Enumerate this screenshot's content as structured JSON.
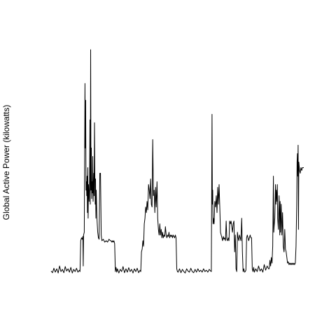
{
  "chart_data": {
    "type": "line",
    "title": "",
    "xlabel": "",
    "ylabel": "Global Active Power (kilowatts)",
    "axes_visible": false,
    "grid": false,
    "ylim": [
      0,
      8
    ],
    "xlim": [
      0,
      360
    ],
    "line_color": "#000000",
    "series": [
      {
        "points": [
          [
            0,
            0.12
          ],
          [
            2,
            0.06
          ],
          [
            4,
            0.22
          ],
          [
            6,
            0.08
          ],
          [
            8,
            0.2
          ],
          [
            10,
            0.05
          ],
          [
            12,
            0.3
          ],
          [
            14,
            0.1
          ],
          [
            16,
            0.18
          ],
          [
            18,
            0.06
          ],
          [
            20,
            0.28
          ],
          [
            22,
            0.12
          ],
          [
            24,
            0.2
          ],
          [
            26,
            0.08
          ],
          [
            28,
            0.25
          ],
          [
            30,
            0.05
          ],
          [
            32,
            0.18
          ],
          [
            34,
            0.1
          ],
          [
            36,
            0.22
          ],
          [
            38,
            0.08
          ],
          [
            40,
            0.15
          ],
          [
            41,
            0.1
          ],
          [
            42,
            1.2
          ],
          [
            43,
            1.3
          ],
          [
            44,
            1.25
          ],
          [
            45,
            1.35
          ],
          [
            45.5,
            0.3
          ],
          [
            46,
            1.4
          ],
          [
            47,
            1.5
          ],
          [
            48,
            6.8
          ],
          [
            48.5,
            4.5
          ],
          [
            49,
            6.2
          ],
          [
            49.5,
            3.0
          ],
          [
            50,
            3.3
          ],
          [
            50.5,
            2.8
          ],
          [
            51,
            3.5
          ],
          [
            51.5,
            2.2
          ],
          [
            52,
            3.8
          ],
          [
            52.5,
            2.0
          ],
          [
            53,
            3.2
          ],
          [
            54,
            2.6
          ],
          [
            54.5,
            3.4
          ],
          [
            55,
            5.5
          ],
          [
            55.5,
            2.5
          ],
          [
            56,
            8.0
          ],
          [
            56.5,
            3.0
          ],
          [
            57,
            4.5
          ],
          [
            57.5,
            2.7
          ],
          [
            58,
            3.3
          ],
          [
            58.5,
            2.9
          ],
          [
            59,
            4.2
          ],
          [
            59.5,
            2.6
          ],
          [
            60,
            3.0
          ],
          [
            60.5,
            3.6
          ],
          [
            61,
            2.8
          ],
          [
            61.5,
            5.4
          ],
          [
            62,
            3.6
          ],
          [
            62.5,
            2.5
          ],
          [
            63,
            3.4
          ],
          [
            63.5,
            2.0
          ],
          [
            64,
            3.0
          ],
          [
            65,
            2.0
          ],
          [
            66,
            1.5
          ],
          [
            67,
            1.3
          ],
          [
            68,
            1.25
          ],
          [
            69,
            3.6
          ],
          [
            70,
            3.6
          ],
          [
            71,
            1.4
          ],
          [
            72,
            1.2
          ],
          [
            74,
            1.25
          ],
          [
            76,
            1.15
          ],
          [
            78,
            1.2
          ],
          [
            80,
            1.15
          ],
          [
            82,
            1.25
          ],
          [
            84,
            1.2
          ],
          [
            85,
            1.2
          ],
          [
            86,
            1.15
          ],
          [
            87,
            1.2
          ],
          [
            88,
            1.15
          ],
          [
            89,
            1.2
          ],
          [
            90,
            1.1
          ],
          [
            91,
            0.1
          ],
          [
            92,
            0.25
          ],
          [
            93,
            0.08
          ],
          [
            94,
            0.2
          ],
          [
            96,
            0.05
          ],
          [
            98,
            0.18
          ],
          [
            100,
            0.1
          ],
          [
            102,
            0.28
          ],
          [
            104,
            0.06
          ],
          [
            106,
            0.2
          ],
          [
            108,
            0.08
          ],
          [
            110,
            0.24
          ],
          [
            112,
            0.1
          ],
          [
            114,
            0.18
          ],
          [
            116,
            0.05
          ],
          [
            118,
            0.2
          ],
          [
            120,
            0.1
          ],
          [
            122,
            0.22
          ],
          [
            124,
            0.06
          ],
          [
            126,
            0.15
          ],
          [
            127,
            0.1
          ],
          [
            128,
            0.8
          ],
          [
            129,
            0.9
          ],
          [
            130,
            1.2
          ],
          [
            131,
            1.0
          ],
          [
            132,
            1.8
          ],
          [
            133,
            2.0
          ],
          [
            134,
            2.4
          ],
          [
            135,
            2.2
          ],
          [
            136,
            2.6
          ],
          [
            137,
            2.3
          ],
          [
            138,
            3.2
          ],
          [
            139,
            3.0
          ],
          [
            140,
            2.7
          ],
          [
            141,
            3.4
          ],
          [
            142,
            2.5
          ],
          [
            143,
            2.4
          ],
          [
            144,
            4.8
          ],
          [
            145,
            2.8
          ],
          [
            146,
            3.0
          ],
          [
            147,
            2.2
          ],
          [
            148,
            3.1
          ],
          [
            149,
            2.4
          ],
          [
            150,
            3.3
          ],
          [
            151,
            2.0
          ],
          [
            152,
            1.6
          ],
          [
            153,
            1.4
          ],
          [
            154,
            1.8
          ],
          [
            155,
            1.4
          ],
          [
            156,
            1.6
          ],
          [
            157,
            1.3
          ],
          [
            158,
            1.5
          ],
          [
            159,
            1.3
          ],
          [
            160,
            1.4
          ],
          [
            161,
            1.35
          ],
          [
            162,
            1.7
          ],
          [
            163,
            1.4
          ],
          [
            164,
            1.3
          ],
          [
            165,
            1.4
          ],
          [
            166,
            1.35
          ],
          [
            167,
            1.5
          ],
          [
            168,
            1.3
          ],
          [
            169,
            1.4
          ],
          [
            170,
            1.35
          ],
          [
            171,
            1.4
          ],
          [
            172,
            1.3
          ],
          [
            173,
            1.4
          ],
          [
            174,
            1.35
          ],
          [
            175,
            1.3
          ],
          [
            176,
            1.4
          ],
          [
            177,
            1.3
          ],
          [
            178,
            0.2
          ],
          [
            179,
            0.1
          ],
          [
            180,
            0.08
          ],
          [
            182,
            0.2
          ],
          [
            184,
            0.06
          ],
          [
            186,
            0.18
          ],
          [
            188,
            0.1
          ],
          [
            190,
            0.05
          ],
          [
            192,
            0.2
          ],
          [
            194,
            0.12
          ],
          [
            196,
            0.08
          ],
          [
            198,
            0.22
          ],
          [
            200,
            0.1
          ],
          [
            202,
            0.06
          ],
          [
            204,
            0.18
          ],
          [
            206,
            0.08
          ],
          [
            208,
            0.2
          ],
          [
            210,
            0.1
          ],
          [
            212,
            0.15
          ],
          [
            214,
            0.08
          ],
          [
            216,
            0.2
          ],
          [
            218,
            0.1
          ],
          [
            220,
            0.15
          ],
          [
            222,
            0.08
          ],
          [
            224,
            0.18
          ],
          [
            226,
            0.12
          ],
          [
            227,
            0.1
          ],
          [
            228,
            5.7
          ],
          [
            228.5,
            2.5
          ],
          [
            229,
            3.0
          ],
          [
            229.5,
            1.8
          ],
          [
            230,
            2.0
          ],
          [
            230.5,
            1.9
          ],
          [
            231,
            1.8
          ],
          [
            232,
            2.6
          ],
          [
            233,
            2.4
          ],
          [
            234,
            2.8
          ],
          [
            235,
            2.2
          ],
          [
            236,
            3.1
          ],
          [
            237,
            2.5
          ],
          [
            238,
            3.2
          ],
          [
            239,
            2.4
          ],
          [
            240,
            1.5
          ],
          [
            241,
            1.4
          ],
          [
            242,
            1.3
          ],
          [
            243,
            1.2
          ],
          [
            244,
            1.35
          ],
          [
            245,
            1.25
          ],
          [
            246,
            1.3
          ],
          [
            247,
            1.2
          ],
          [
            248,
            1.9
          ],
          [
            249,
            1.25
          ],
          [
            250,
            1.2
          ],
          [
            251,
            1.3
          ],
          [
            252,
            1.2
          ],
          [
            253,
            1.9
          ],
          [
            254,
            1.8
          ],
          [
            255,
            1.9
          ],
          [
            256,
            1.7
          ],
          [
            257,
            1.5
          ],
          [
            258,
            1.8
          ],
          [
            259,
            1.9
          ],
          [
            260,
            0.8
          ],
          [
            261,
            1.4
          ],
          [
            262,
            0.2
          ],
          [
            263,
            0.1
          ],
          [
            264,
            1.5
          ],
          [
            265,
            1.3
          ],
          [
            266,
            1.2
          ],
          [
            267,
            1.4
          ],
          [
            268,
            1.3
          ],
          [
            269,
            1.2
          ],
          [
            270,
            2.0
          ],
          [
            271,
            0.8
          ],
          [
            272,
            0.1
          ],
          [
            273,
            0.2
          ],
          [
            274,
            0.08
          ],
          [
            275,
            0.1
          ],
          [
            276,
            0.15
          ],
          [
            277,
            1.3
          ],
          [
            278,
            1.4
          ],
          [
            279,
            1.3
          ],
          [
            280,
            1.2
          ],
          [
            281,
            1.3
          ],
          [
            282,
            1.4
          ],
          [
            283,
            1.3
          ],
          [
            284,
            1.3
          ],
          [
            285,
            0.2
          ],
          [
            286,
            0.1
          ],
          [
            287,
            0.25
          ],
          [
            288,
            0.08
          ],
          [
            290,
            0.2
          ],
          [
            292,
            0.1
          ],
          [
            294,
            0.3
          ],
          [
            296,
            0.12
          ],
          [
            298,
            0.2
          ],
          [
            300,
            0.08
          ],
          [
            302,
            0.35
          ],
          [
            304,
            0.15
          ],
          [
            306,
            0.3
          ],
          [
            308,
            0.2
          ],
          [
            309,
            0.2
          ],
          [
            310,
            0.5
          ],
          [
            311,
            0.3
          ],
          [
            312,
            0.6
          ],
          [
            313,
            0.4
          ],
          [
            314,
            1.0
          ],
          [
            315,
            3.5
          ],
          [
            315.5,
            1.5
          ],
          [
            316,
            1.7
          ],
          [
            317,
            2.0
          ],
          [
            318,
            3.2
          ],
          [
            318.5,
            2.5
          ],
          [
            319,
            3.0
          ],
          [
            320,
            2.6
          ],
          [
            320.5,
            3.2
          ],
          [
            321,
            2.0
          ],
          [
            322,
            1.6
          ],
          [
            323,
            2.8
          ],
          [
            324,
            1.4
          ],
          [
            324.5,
            2.6
          ],
          [
            325,
            1.5
          ],
          [
            326,
            2.5
          ],
          [
            327,
            1.4
          ],
          [
            328,
            2.2
          ],
          [
            329,
            1.0
          ],
          [
            330,
            0.8
          ],
          [
            331,
            1.6
          ],
          [
            332,
            0.9
          ],
          [
            333,
            0.8
          ],
          [
            334,
            0.6
          ],
          [
            335,
            0.4
          ],
          [
            336,
            0.45
          ],
          [
            337,
            0.35
          ],
          [
            338,
            0.4
          ],
          [
            339,
            0.35
          ],
          [
            340,
            0.4
          ],
          [
            341,
            0.35
          ],
          [
            342,
            0.4
          ],
          [
            343,
            0.35
          ],
          [
            344,
            0.4
          ],
          [
            345,
            0.35
          ],
          [
            346,
            0.4
          ],
          [
            347,
            1.0
          ],
          [
            348,
            2.5
          ],
          [
            348.5,
            4.0
          ],
          [
            349,
            4.3
          ],
          [
            349.5,
            3.5
          ],
          [
            350,
            4.6
          ],
          [
            350.5,
            1.6
          ],
          [
            351,
            4.0
          ],
          [
            352,
            3.7
          ],
          [
            353,
            3.6
          ],
          [
            354,
            3.8
          ],
          [
            355,
            3.7
          ],
          [
            356,
            3.8
          ],
          [
            357,
            3.8
          ],
          [
            358,
            3.8
          ]
        ]
      }
    ]
  }
}
